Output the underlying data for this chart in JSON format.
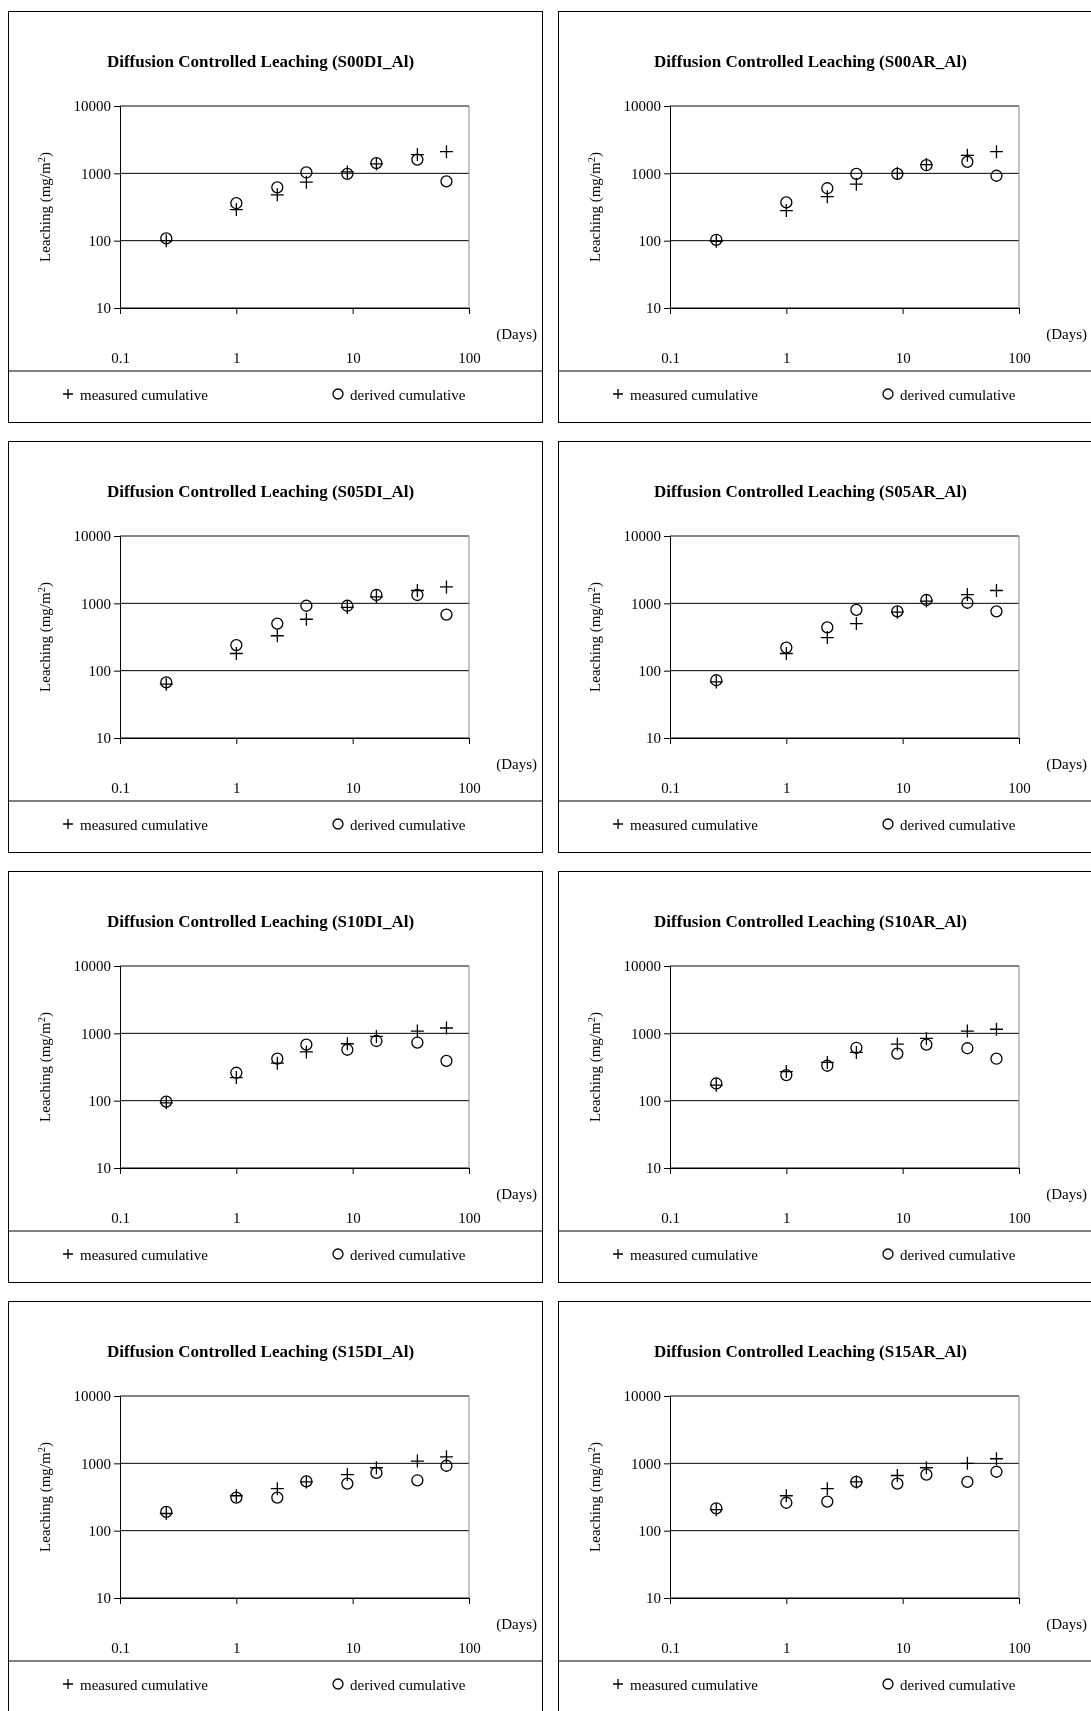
{
  "chart_data": [
    {
      "type": "scatter",
      "title": "Diffusion Controlled Leaching (S00DI_Al)",
      "xlabel": "(Days)",
      "ylabel": "Leaching (mg/m$^{2}$)",
      "log": "xy",
      "xlim": [
        0.1,
        100
      ],
      "xticks": [
        0.1,
        1,
        10,
        100
      ],
      "ylim": [
        10,
        10000
      ],
      "yticks": [
        10,
        100,
        1000,
        10000
      ],
      "grid": "y",
      "legend": "bottom",
      "x": [
        0.25,
        1,
        2.25,
        4,
        9,
        16,
        36,
        64
      ],
      "series": [
        {
          "name": "measured cumulative",
          "color": "#000000",
          "marker": "cross",
          "values": [
            100,
            290,
            480,
            740,
            1050,
            1380,
            1900,
            2100
          ]
        },
        {
          "name": "derived cumulative",
          "color": "#000000",
          "marker": "circle",
          "values": [
            108,
            360,
            620,
            1030,
            980,
            1420,
            1600,
            760
          ]
        }
      ]
    },
    {
      "type": "scatter",
      "title": "Diffusion Controlled Leaching (S00AR_Al)",
      "xlabel": "(Days)",
      "ylabel": "Leaching (mg/m$^{2}$)",
      "log": "xy",
      "xlim": [
        0.1,
        100
      ],
      "xticks": [
        0.1,
        1,
        10,
        100
      ],
      "ylim": [
        10,
        10000
      ],
      "yticks": [
        10,
        100,
        1000,
        10000
      ],
      "grid": "y",
      "legend": "bottom",
      "x": [
        0.25,
        1,
        2.25,
        4,
        9,
        16,
        36,
        64
      ],
      "series": [
        {
          "name": "measured cumulative",
          "color": "#000000",
          "marker": "cross",
          "values": [
            98,
            280,
            450,
            690,
            1000,
            1350,
            1850,
            2100
          ]
        },
        {
          "name": "derived cumulative",
          "color": "#000000",
          "marker": "circle",
          "values": [
            103,
            370,
            600,
            980,
            980,
            1320,
            1480,
            920
          ]
        }
      ]
    },
    {
      "type": "scatter",
      "title": "Diffusion Controlled Leaching (S05DI_Al)",
      "xlabel": "(Days)",
      "ylabel": "Leaching (mg/m$^{2}$)",
      "log": "xy",
      "xlim": [
        0.1,
        100
      ],
      "xticks": [
        0.1,
        1,
        10,
        100
      ],
      "ylim": [
        10,
        10000
      ],
      "yticks": [
        10,
        100,
        1000,
        10000
      ],
      "grid": "y",
      "legend": "bottom",
      "x": [
        0.25,
        1,
        2.25,
        4,
        9,
        16,
        36,
        64
      ],
      "series": [
        {
          "name": "measured cumulative",
          "color": "#000000",
          "marker": "cross",
          "values": [
            63,
            180,
            330,
            580,
            870,
            1250,
            1550,
            1750
          ]
        },
        {
          "name": "derived cumulative",
          "color": "#000000",
          "marker": "circle",
          "values": [
            67,
            240,
            500,
            920,
            920,
            1330,
            1330,
            680
          ]
        }
      ]
    },
    {
      "type": "scatter",
      "title": "Diffusion Controlled Leaching (S05AR_Al)",
      "xlabel": "(Days)",
      "ylabel": "Leaching (mg/m$^{2}$)",
      "log": "xy",
      "xlim": [
        0.1,
        100
      ],
      "xticks": [
        0.1,
        1,
        10,
        100
      ],
      "ylim": [
        10,
        10000
      ],
      "yticks": [
        10,
        100,
        1000,
        10000
      ],
      "grid": "y",
      "legend": "bottom",
      "x": [
        0.25,
        1,
        2.25,
        4,
        9,
        16,
        36,
        64
      ],
      "series": [
        {
          "name": "measured cumulative",
          "color": "#000000",
          "marker": "cross",
          "values": [
            68,
            180,
            310,
            500,
            740,
            1080,
            1350,
            1550
          ]
        },
        {
          "name": "derived cumulative",
          "color": "#000000",
          "marker": "circle",
          "values": [
            72,
            220,
            440,
            800,
            760,
            1120,
            1020,
            760
          ]
        }
      ]
    },
    {
      "type": "scatter",
      "title": "Diffusion Controlled Leaching (S10DI_Al)",
      "xlabel": "(Days)",
      "ylabel": "Leaching (mg/m$^{2}$)",
      "log": "xy",
      "xlim": [
        0.1,
        100
      ],
      "xticks": [
        0.1,
        1,
        10,
        100
      ],
      "ylim": [
        10,
        10000
      ],
      "yticks": [
        10,
        100,
        1000,
        10000
      ],
      "grid": "y",
      "legend": "bottom",
      "x": [
        0.25,
        1,
        2.25,
        4,
        9,
        16,
        36,
        64
      ],
      "series": [
        {
          "name": "measured cumulative",
          "color": "#000000",
          "marker": "cross",
          "values": [
            93,
            220,
            360,
            530,
            700,
            900,
            1080,
            1200
          ]
        },
        {
          "name": "derived cumulative",
          "color": "#000000",
          "marker": "circle",
          "values": [
            97,
            260,
            420,
            680,
            570,
            770,
            730,
            390
          ]
        }
      ]
    },
    {
      "type": "scatter",
      "title": "Diffusion Controlled Leaching (S10AR_Al)",
      "xlabel": "(Days)",
      "ylabel": "Leaching (mg/m$^{2}$)",
      "log": "xy",
      "xlim": [
        0.1,
        100
      ],
      "xticks": [
        0.1,
        1,
        10,
        100
      ],
      "ylim": [
        10,
        10000
      ],
      "yticks": [
        10,
        100,
        1000,
        10000
      ],
      "grid": "y",
      "legend": "bottom",
      "x": [
        0.25,
        1,
        2.25,
        4,
        9,
        16,
        36,
        64
      ],
      "series": [
        {
          "name": "measured cumulative",
          "color": "#000000",
          "marker": "cross",
          "values": [
            170,
            270,
            370,
            520,
            690,
            840,
            1080,
            1150
          ]
        },
        {
          "name": "derived cumulative",
          "color": "#000000",
          "marker": "circle",
          "values": [
            180,
            240,
            330,
            610,
            500,
            680,
            600,
            420
          ]
        }
      ]
    },
    {
      "type": "scatter",
      "title": "Diffusion Controlled Leaching (S15DI_Al)",
      "xlabel": "(Days)",
      "ylabel": "Leaching (mg/m$^{2}$)",
      "log": "xy",
      "xlim": [
        0.1,
        100
      ],
      "xticks": [
        0.1,
        1,
        10,
        100
      ],
      "ylim": [
        10,
        10000
      ],
      "yticks": [
        10,
        100,
        1000,
        10000
      ],
      "grid": "y",
      "legend": "bottom",
      "x": [
        0.25,
        1,
        2.25,
        4,
        9,
        16,
        36,
        64
      ],
      "series": [
        {
          "name": "measured cumulative",
          "color": "#000000",
          "marker": "cross",
          "values": [
            180,
            330,
            420,
            530,
            680,
            860,
            1080,
            1250
          ]
        },
        {
          "name": "derived cumulative",
          "color": "#000000",
          "marker": "circle",
          "values": [
            190,
            310,
            310,
            540,
            500,
            720,
            560,
            920
          ]
        }
      ]
    },
    {
      "type": "scatter",
      "title": "Diffusion Controlled Leaching (S15AR_Al)",
      "xlabel": "(Days)",
      "ylabel": "Leaching (mg/m$^{2}$)",
      "log": "xy",
      "xlim": [
        0.1,
        100
      ],
      "xticks": [
        0.1,
        1,
        10,
        100
      ],
      "ylim": [
        10,
        10000
      ],
      "yticks": [
        10,
        100,
        1000,
        10000
      ],
      "grid": "y",
      "legend": "bottom",
      "x": [
        0.25,
        1,
        2.25,
        4,
        9,
        16,
        36,
        64
      ],
      "series": [
        {
          "name": "measured cumulative",
          "color": "#000000",
          "marker": "cross",
          "values": [
            205,
            330,
            420,
            530,
            660,
            860,
            1000,
            1170
          ]
        },
        {
          "name": "derived cumulative",
          "color": "#000000",
          "marker": "circle",
          "values": [
            215,
            260,
            270,
            530,
            500,
            680,
            530,
            750
          ]
        }
      ]
    }
  ]
}
